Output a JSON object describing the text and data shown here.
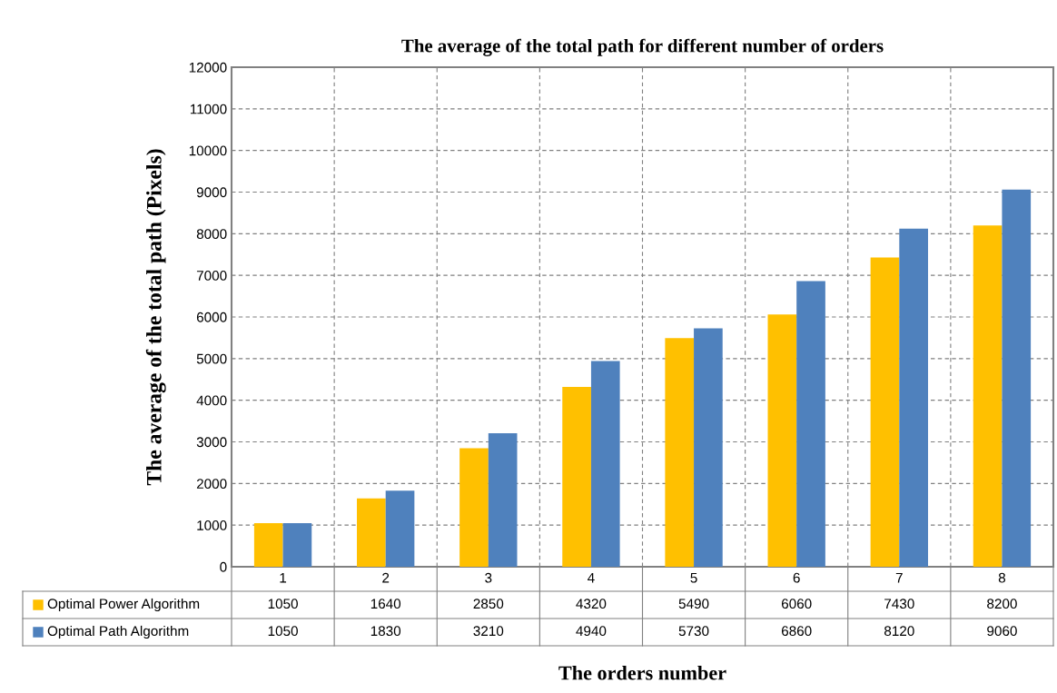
{
  "chart_data": {
    "type": "bar",
    "title": "The average of the total path for different number of orders",
    "xlabel": "The orders number",
    "ylabel": "The average of the total path (Pixels)",
    "categories": [
      "1",
      "2",
      "3",
      "4",
      "5",
      "6",
      "7",
      "8"
    ],
    "series": [
      {
        "name": "Optimal Power Algorithm",
        "color": "#ffc000",
        "values": [
          1050,
          1640,
          2850,
          4320,
          5490,
          6060,
          7430,
          8200
        ]
      },
      {
        "name": "Optimal Path Algorithm",
        "color": "#4f81bd",
        "values": [
          1050,
          1830,
          3210,
          4940,
          5730,
          6860,
          8120,
          9060
        ]
      }
    ],
    "ylim": [
      0,
      12000
    ],
    "yticks": [
      0,
      1000,
      2000,
      3000,
      4000,
      5000,
      6000,
      7000,
      8000,
      9000,
      10000,
      11000,
      12000
    ],
    "grid": true,
    "legend": "bottom",
    "data_labels": true
  }
}
